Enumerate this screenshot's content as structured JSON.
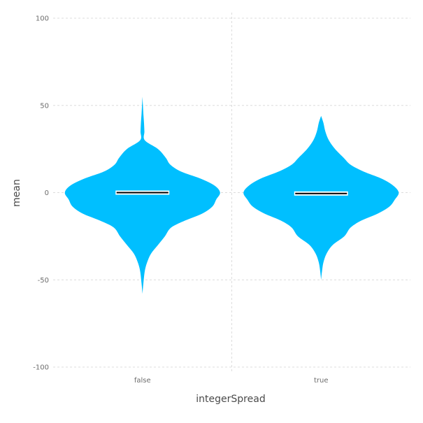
{
  "chart_data": {
    "type": "violin",
    "xlabel": "integerSpread",
    "ylabel": "mean",
    "ylim": [
      -100,
      100
    ],
    "yticks": [
      100,
      50,
      0,
      -50,
      -100
    ],
    "ytick_labels": [
      "100",
      "50",
      "0",
      "-50",
      "-100"
    ],
    "categories": [
      "false",
      "true"
    ],
    "grid": true,
    "series_color": "#00bfff",
    "violins": [
      {
        "category": "false",
        "median": 0,
        "density": [
          [
            -58,
            0.0
          ],
          [
            -52,
            0.012
          ],
          [
            -45,
            0.03
          ],
          [
            -40,
            0.06
          ],
          [
            -35,
            0.11
          ],
          [
            -30,
            0.2
          ],
          [
            -25,
            0.29
          ],
          [
            -20,
            0.37
          ],
          [
            -16,
            0.55
          ],
          [
            -12,
            0.77
          ],
          [
            -8,
            0.9
          ],
          [
            -4,
            0.95
          ],
          [
            0,
            1.0
          ],
          [
            4,
            0.93
          ],
          [
            8,
            0.75
          ],
          [
            12,
            0.5
          ],
          [
            16,
            0.36
          ],
          [
            20,
            0.3
          ],
          [
            25,
            0.2
          ],
          [
            30,
            0.03
          ],
          [
            35,
            0.025
          ],
          [
            40,
            0.02
          ],
          [
            45,
            0.012
          ],
          [
            50,
            0.006
          ],
          [
            55,
            0.0
          ]
        ]
      },
      {
        "category": "true",
        "median": -0.5,
        "density": [
          [
            -50,
            0.0
          ],
          [
            -45,
            0.012
          ],
          [
            -40,
            0.03
          ],
          [
            -35,
            0.07
          ],
          [
            -30,
            0.15
          ],
          [
            -25,
            0.3
          ],
          [
            -20,
            0.38
          ],
          [
            -16,
            0.52
          ],
          [
            -12,
            0.73
          ],
          [
            -8,
            0.88
          ],
          [
            -4,
            0.95
          ],
          [
            0,
            1.0
          ],
          [
            4,
            0.93
          ],
          [
            8,
            0.78
          ],
          [
            12,
            0.55
          ],
          [
            16,
            0.38
          ],
          [
            20,
            0.29
          ],
          [
            25,
            0.18
          ],
          [
            30,
            0.1
          ],
          [
            35,
            0.055
          ],
          [
            40,
            0.03
          ],
          [
            44,
            0.0
          ]
        ]
      }
    ]
  }
}
